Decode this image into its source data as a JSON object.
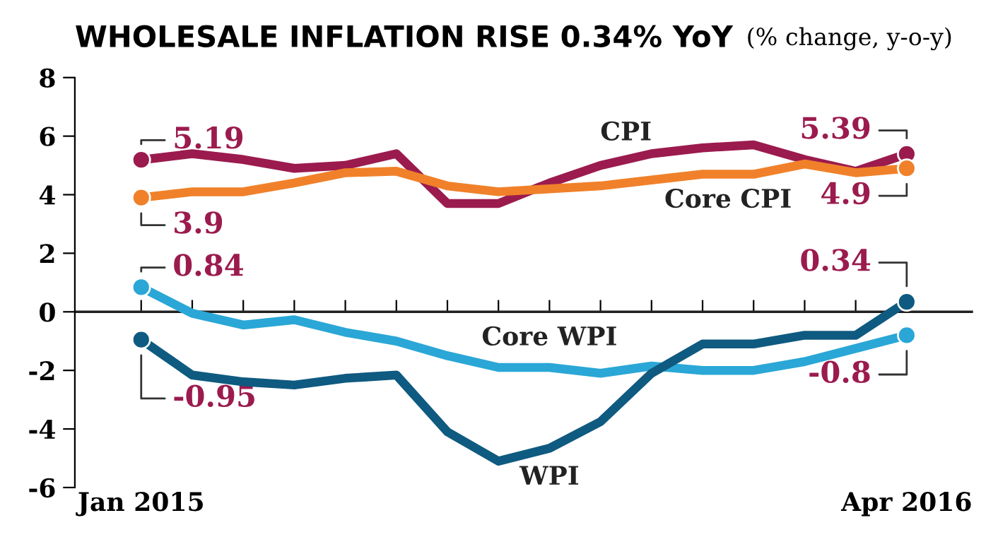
{
  "chart_data": {
    "type": "line",
    "title": "WHOLESALE INFLATION RISE 0.34% YoY",
    "subtitle": "(% change, y-o-y)",
    "categories": [
      "Jan 2015",
      null,
      null,
      null,
      null,
      null,
      null,
      null,
      null,
      null,
      null,
      null,
      null,
      null,
      null,
      "Apr 2016"
    ],
    "series": [
      {
        "name": "CPI",
        "color": "#9b1b4e",
        "values": [
          5.19,
          5.4,
          5.2,
          4.9,
          5.0,
          5.4,
          3.7,
          3.7,
          4.4,
          5.0,
          5.4,
          5.6,
          5.7,
          5.2,
          4.8,
          5.39
        ],
        "value_labels": [
          "5.19",
          null,
          null,
          null,
          null,
          null,
          null,
          null,
          null,
          null,
          null,
          null,
          null,
          null,
          null,
          "5.39"
        ]
      },
      {
        "name": "Core CPI",
        "color": "#f0812a",
        "values": [
          3.9,
          4.1,
          4.1,
          4.4,
          4.75,
          4.8,
          4.3,
          4.1,
          4.2,
          4.3,
          4.5,
          4.7,
          4.7,
          5.05,
          4.75,
          4.9
        ],
        "value_labels": [
          "3.9",
          null,
          null,
          null,
          null,
          null,
          null,
          null,
          null,
          null,
          null,
          null,
          null,
          null,
          null,
          "4.9"
        ]
      },
      {
        "name": "Core WPI",
        "color": "#2aa7d6",
        "values": [
          0.84,
          -0.05,
          -0.45,
          -0.27,
          -0.7,
          -1.0,
          -1.5,
          -1.9,
          -1.9,
          -2.1,
          -1.85,
          -2.0,
          -2.0,
          -1.7,
          -1.25,
          -0.8
        ],
        "value_labels": [
          "0.84",
          null,
          null,
          null,
          null,
          null,
          null,
          null,
          null,
          null,
          null,
          null,
          null,
          null,
          null,
          "-0.8"
        ]
      },
      {
        "name": "WPI",
        "color": "#0f5a80",
        "values": [
          -0.95,
          -2.16,
          -2.39,
          -2.5,
          -2.27,
          -2.16,
          -4.1,
          -5.1,
          -4.66,
          -3.75,
          -2.1,
          -1.1,
          -1.1,
          -0.8,
          -0.8,
          0.34
        ],
        "value_labels": [
          "-0.95",
          null,
          null,
          null,
          null,
          null,
          null,
          null,
          null,
          null,
          null,
          null,
          null,
          null,
          null,
          "0.34"
        ]
      }
    ],
    "ylim": [
      -6,
      8
    ],
    "yticks": [
      -6,
      -4,
      -2,
      0,
      2,
      4,
      6,
      8
    ],
    "ref_lines": [
      {
        "axis": "y",
        "value": 0,
        "color": "#222222"
      }
    ],
    "grid": false,
    "legend": false,
    "line_style": "solid"
  }
}
